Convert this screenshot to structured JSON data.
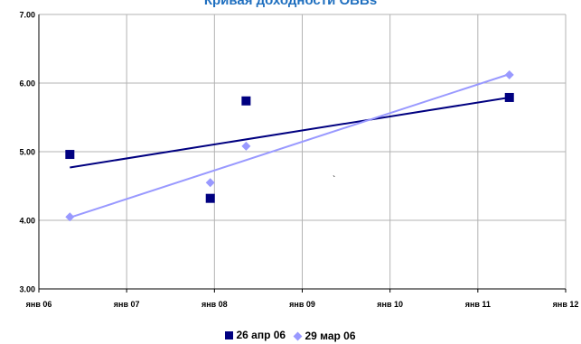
{
  "chart_data": {
    "type": "scatter",
    "title": "Кривая доходности OBBs",
    "xlabel": "",
    "ylabel": "",
    "ylim": [
      3.0,
      7.0
    ],
    "yticks": [
      "3.00",
      "4.00",
      "5.00",
      "6.00",
      "7.00"
    ],
    "xlim": [
      "2006-01-01",
      "2012-01-01"
    ],
    "xticks": [
      "янв 06",
      "янв 07",
      "янв 08",
      "янв 09",
      "янв 10",
      "янв 11",
      "янв 12"
    ],
    "grid": true,
    "legend_position": "bottom",
    "series": [
      {
        "name": "26 апр 06",
        "marker": "square",
        "color": "#000080",
        "points": [
          {
            "x": "2006-05-10",
            "y": 4.96
          },
          {
            "x": "2007-12-15",
            "y": 4.32
          },
          {
            "x": "2008-05-12",
            "y": 5.74
          },
          {
            "x": "2011-05-12",
            "y": 5.79
          }
        ],
        "trendline": {
          "from": {
            "x": "2006-05-10",
            "y": 4.77
          },
          "to": {
            "x": "2011-05-12",
            "y": 5.79
          }
        }
      },
      {
        "name": "29 мар 06",
        "marker": "diamond",
        "color": "#9999ff",
        "points": [
          {
            "x": "2006-05-10",
            "y": 4.05
          },
          {
            "x": "2007-12-15",
            "y": 4.55
          },
          {
            "x": "2008-05-12",
            "y": 5.08
          },
          {
            "x": "2011-05-12",
            "y": 6.12
          }
        ],
        "trendline": {
          "from": {
            "x": "2006-05-10",
            "y": 4.04
          },
          "to": {
            "x": "2011-05-12",
            "y": 6.13
          }
        }
      }
    ],
    "annotation": "`"
  }
}
